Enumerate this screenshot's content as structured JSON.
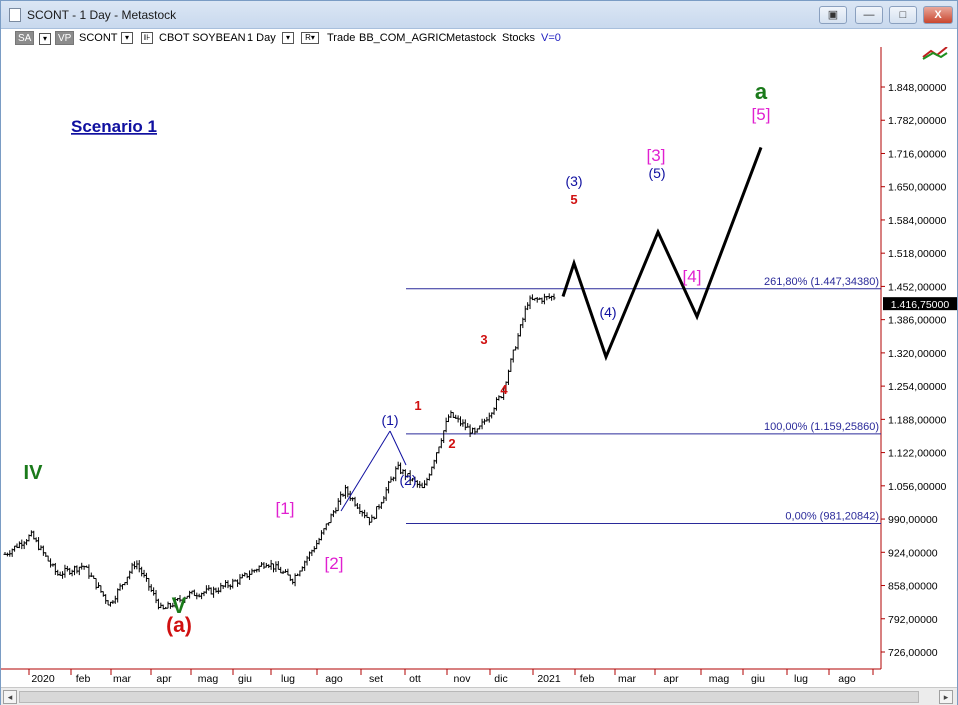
{
  "window": {
    "title": "SCONT - 1 Day - Metastock",
    "minimize": "—",
    "maximize": "□",
    "restore": "▣",
    "close": "X"
  },
  "toolbar": {
    "sa": "SA",
    "vp": "VP",
    "symbol": "SCONT",
    "description": "CBOT SOYBEAN",
    "period": "1 Day",
    "r_button": "R▾",
    "trade": "Trade",
    "source": "BB_COM_AGRIC",
    "provider": "Metastock",
    "type": "Stocks",
    "volume": "V=0"
  },
  "scenario_label": "Scenario 1",
  "price_axis": {
    "ticks": [
      "1.848,00000",
      "1.782,00000",
      "1.716,00000",
      "1.650,00000",
      "1.584,00000",
      "1.518,00000",
      "1.452,00000",
      "1.386,00000",
      "1.320,00000",
      "1.254,00000",
      "1.188,00000",
      "1.122,00000",
      "1.056,00000",
      "990,00000",
      "924,00000",
      "858,00000",
      "792,00000",
      "726,00000"
    ],
    "tick_values": [
      1848,
      1782,
      1716,
      1650,
      1584,
      1518,
      1452,
      1386,
      1320,
      1254,
      1188,
      1122,
      1056,
      990,
      924,
      858,
      792,
      726
    ],
    "current_price": "1.416,75000",
    "current_value": 1416.75
  },
  "time_axis": {
    "labels": [
      "2020",
      "feb",
      "mar",
      "apr",
      "mag",
      "giu",
      "lug",
      "ago",
      "set",
      "ott",
      "nov",
      "dic",
      "2021",
      "feb",
      "mar",
      "apr",
      "mag",
      "giu",
      "lug",
      "ago"
    ]
  },
  "fib_levels": [
    {
      "label": "261,80% (1.447,34380)",
      "value": 1447.3438
    },
    {
      "label": "100,00% (1.159,25860)",
      "value": 1159.2586
    },
    {
      "label": "0,00% (981,20842)",
      "value": 981.20842
    }
  ],
  "wave_labels": {
    "IV": "IV",
    "V": "V",
    "a_paren": "(a)",
    "a": "a",
    "b1": "[1]",
    "b2": "[2]",
    "b3": "[3]",
    "b4": "[4]",
    "b5": "[5]",
    "p1": "(1)",
    "p2": "(2)",
    "p3": "(3)",
    "p4": "(4)",
    "p5": "(5)",
    "n1": "1",
    "n2": "2",
    "n3": "3",
    "n4": "4",
    "n5": "5"
  },
  "colors": {
    "green": "#1a7a1a",
    "red": "#d01010",
    "magenta": "#e020d0",
    "blue": "#1010a0",
    "fib": "#2a2a9a"
  },
  "chart_data": {
    "type": "line",
    "series": [
      {
        "values": [
          920,
          958,
          880,
          898,
          820,
          905,
          808,
          840,
          848,
          870,
          905,
          870,
          948,
          1048,
          985,
          1092,
          1048,
          1198,
          1158,
          1238,
          1422,
          1432
        ]
      }
    ],
    "projection": {
      "points": [
        1432,
        1498,
        1312,
        1560,
        1392,
        1728
      ]
    }
  }
}
